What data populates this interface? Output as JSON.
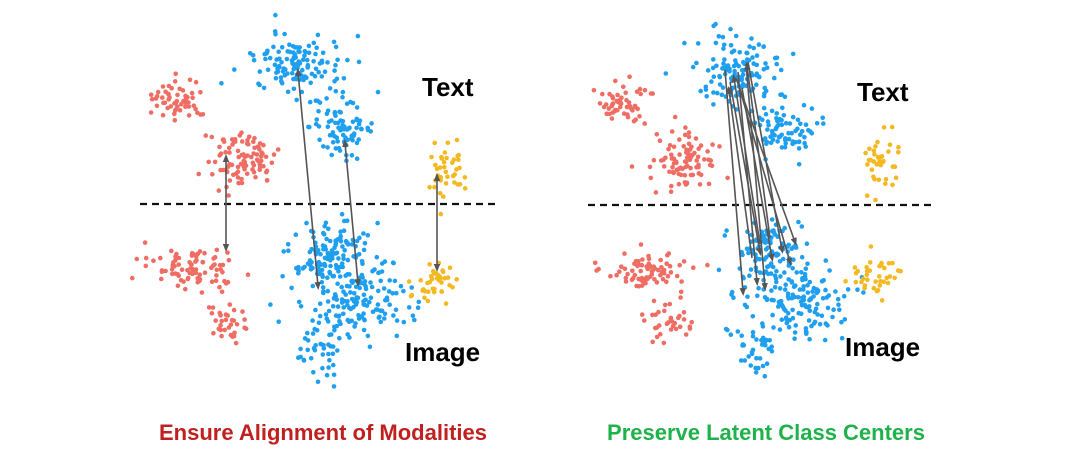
{
  "colors": {
    "red": "#ef6d63",
    "blue": "#1f9ff0",
    "yellow": "#f4b820",
    "arrow": "#555555",
    "divider": "#111111",
    "caption_left": "#c0201f",
    "caption_right": "#1fb14a"
  },
  "panels": [
    {
      "id": "left",
      "text_label": "Text",
      "image_label": "Image",
      "caption": "Ensure Alignment of Modalities"
    },
    {
      "id": "right",
      "text_label": "Text",
      "image_label": "Image",
      "caption": "Preserve Latent Class Centers"
    }
  ]
}
